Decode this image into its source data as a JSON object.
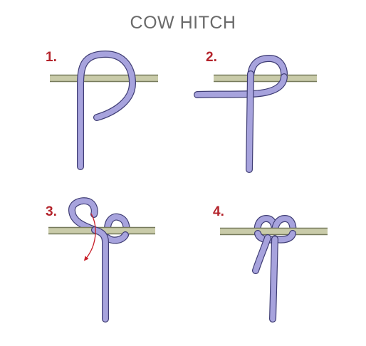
{
  "title": "COW HITCH",
  "steps": [
    {
      "number": "1."
    },
    {
      "number": "2."
    },
    {
      "number": "3."
    },
    {
      "number": "4."
    }
  ],
  "colors": {
    "title": "#6a6a6a",
    "step_number": "#b4232b",
    "rope_fill": "#a7a3dd",
    "rope_outline": "#3f3d74",
    "pole_fill": "#c9cba9",
    "pole_outline": "#767a5c",
    "arrow": "#c8202a",
    "background": "#ffffff"
  },
  "icons": {
    "direction_arrow": "curved-arrow-icon"
  }
}
